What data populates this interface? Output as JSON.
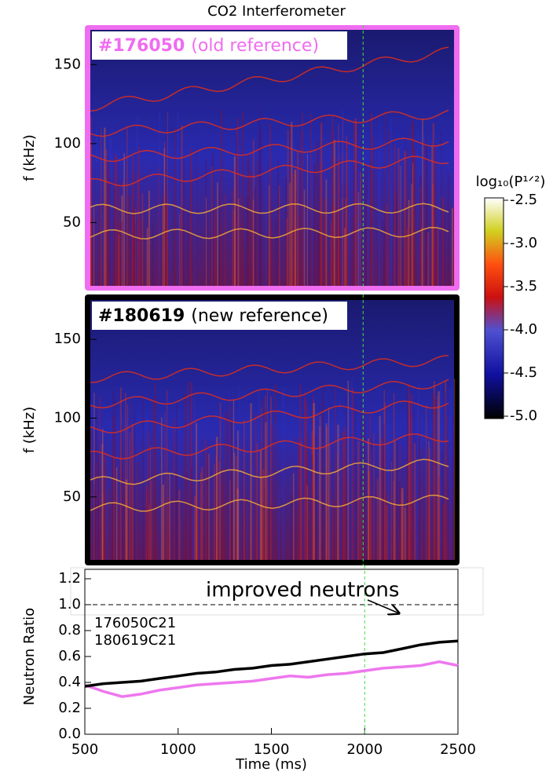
{
  "title": "CO2 Interferometer",
  "chart_data": [
    {
      "type": "spectrogram",
      "shot": "#176050",
      "note": "(old reference)",
      "color": "#f06cf0",
      "ylabel": "f (kHz)",
      "xlim": [
        500,
        2500
      ],
      "ylim": [
        10,
        172
      ],
      "yticks": [
        50,
        100,
        150
      ],
      "marker_x": 2000,
      "marker_color": "#44dd44",
      "colorbar": {
        "label": "log₁₀(P¹ᐟ²)",
        "lim": [
          -5.0,
          -2.5
        ],
        "ticks": [
          -2.5,
          {
            "value": -3,
            "label": "-3.0"
          },
          -3.5,
          {
            "value": -4,
            "label": "-4.0"
          },
          -4.5,
          {
            "value": -5,
            "label": "-5.0"
          }
        ]
      }
    },
    {
      "type": "spectrogram",
      "shot": "#180619",
      "note": "(new reference)",
      "color": "#000000",
      "ylabel": "f (kHz)",
      "xlim": [
        500,
        2500
      ],
      "ylim": [
        10,
        175
      ],
      "yticks": [
        50,
        100,
        150
      ],
      "marker_x": 2000,
      "marker_color": "#44dd44"
    },
    {
      "type": "line",
      "ylabel": "Neutron Ratio",
      "xlabel": "Time (ms)",
      "annotation": "improved neutrons",
      "xlim": [
        500,
        2500
      ],
      "ylim": [
        0,
        1.2
      ],
      "xticks": [
        500,
        1000,
        1500,
        2000,
        2500
      ],
      "yticks": [
        {
          "value": 0,
          "label": "0.0"
        },
        0.2,
        0.4,
        0.6,
        0.8,
        {
          "value": 1,
          "label": "1.0"
        },
        1.2
      ],
      "hline": 1,
      "marker_x": 2000,
      "marker_color": "#44dd44",
      "x": [
        500,
        600,
        700,
        800,
        900,
        1000,
        1100,
        1200,
        1300,
        1400,
        1500,
        1600,
        1700,
        1800,
        1900,
        2000,
        2100,
        2200,
        2300,
        2400,
        2500
      ],
      "series": [
        {
          "name": "176050C21",
          "color": "#ee77ee",
          "values": [
            0.38,
            0.33,
            0.29,
            0.31,
            0.34,
            0.36,
            0.38,
            0.39,
            0.4,
            0.41,
            0.43,
            0.45,
            0.44,
            0.46,
            0.47,
            0.49,
            0.51,
            0.52,
            0.53,
            0.56,
            0.53
          ]
        },
        {
          "name": "180619C21",
          "color": "#000000",
          "values": [
            0.37,
            0.39,
            0.4,
            0.41,
            0.43,
            0.45,
            0.47,
            0.48,
            0.5,
            0.51,
            0.53,
            0.54,
            0.56,
            0.58,
            0.6,
            0.62,
            0.63,
            0.66,
            0.69,
            0.71,
            0.72
          ]
        }
      ]
    }
  ]
}
